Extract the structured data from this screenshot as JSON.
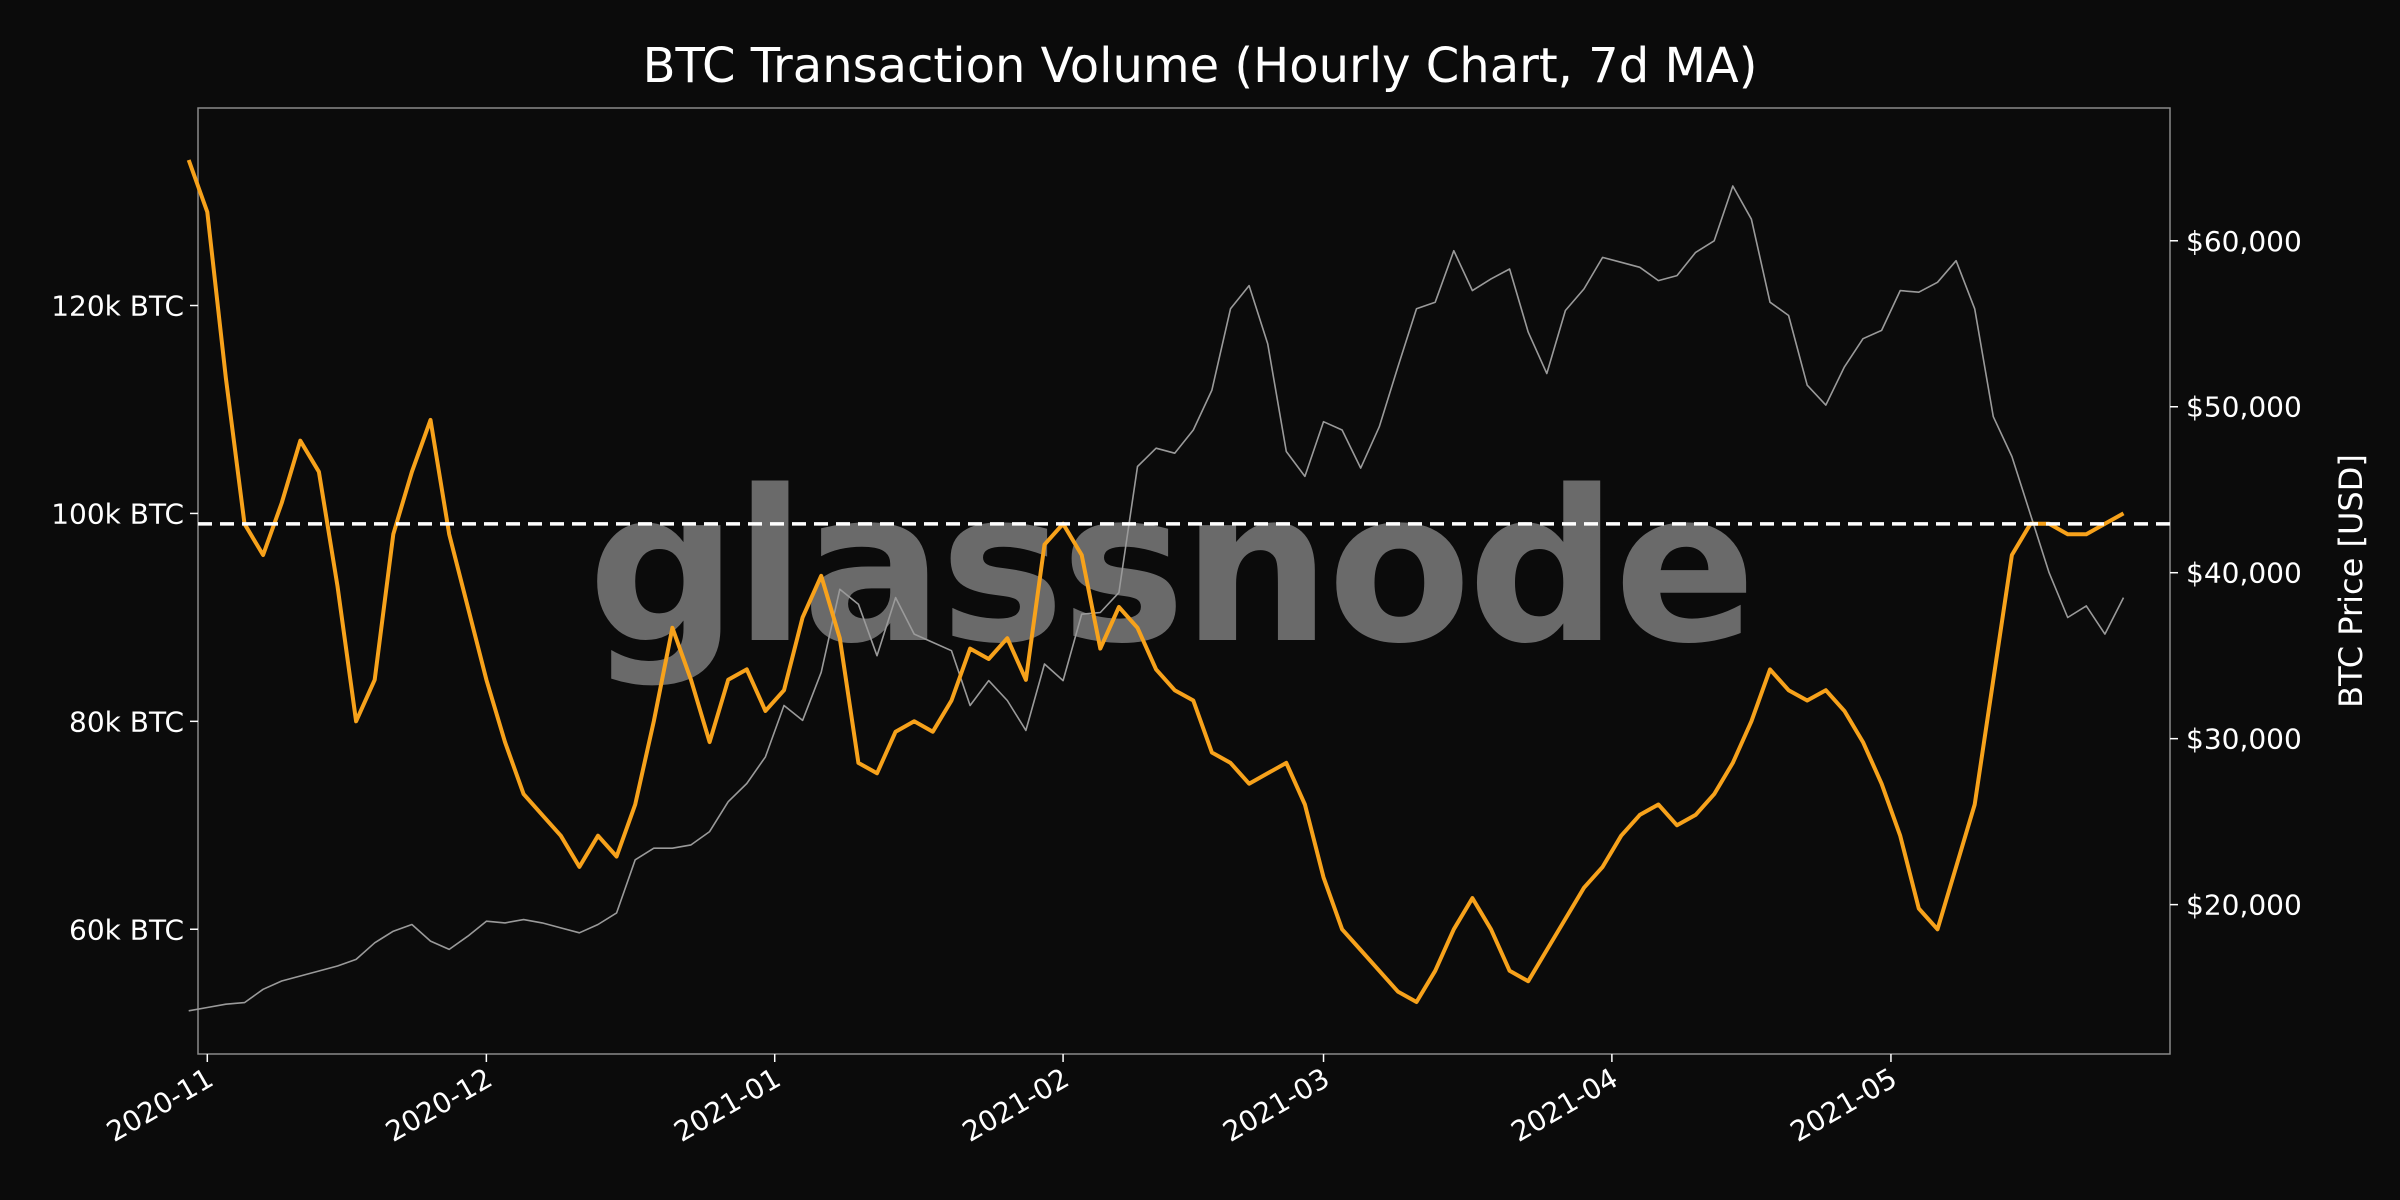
{
  "chart_data": {
    "type": "line",
    "title": "BTC Transaction Volume (Hourly Chart, 7d MA)",
    "watermark": "glassnode",
    "x": [
      "2020-10-30",
      "2020-11-01",
      "2020-11-03",
      "2020-11-05",
      "2020-11-07",
      "2020-11-09",
      "2020-11-11",
      "2020-11-13",
      "2020-11-15",
      "2020-11-17",
      "2020-11-19",
      "2020-11-21",
      "2020-11-23",
      "2020-11-25",
      "2020-11-27",
      "2020-11-29",
      "2020-12-01",
      "2020-12-03",
      "2020-12-05",
      "2020-12-07",
      "2020-12-09",
      "2020-12-11",
      "2020-12-13",
      "2020-12-15",
      "2020-12-17",
      "2020-12-19",
      "2020-12-21",
      "2020-12-23",
      "2020-12-25",
      "2020-12-27",
      "2020-12-29",
      "2020-12-31",
      "2021-01-02",
      "2021-01-04",
      "2021-01-06",
      "2021-01-08",
      "2021-01-10",
      "2021-01-12",
      "2021-01-14",
      "2021-01-16",
      "2021-01-18",
      "2021-01-20",
      "2021-01-22",
      "2021-01-24",
      "2021-01-26",
      "2021-01-28",
      "2021-01-30",
      "2021-02-01",
      "2021-02-03",
      "2021-02-05",
      "2021-02-07",
      "2021-02-09",
      "2021-02-11",
      "2021-02-13",
      "2021-02-15",
      "2021-02-17",
      "2021-02-19",
      "2021-02-21",
      "2021-02-23",
      "2021-02-25",
      "2021-02-27",
      "2021-03-01",
      "2021-03-03",
      "2021-03-05",
      "2021-03-07",
      "2021-03-09",
      "2021-03-11",
      "2021-03-13",
      "2021-03-15",
      "2021-03-17",
      "2021-03-19",
      "2021-03-21",
      "2021-03-23",
      "2021-03-25",
      "2021-03-27",
      "2021-03-29",
      "2021-03-31",
      "2021-04-02",
      "2021-04-04",
      "2021-04-06",
      "2021-04-08",
      "2021-04-10",
      "2021-04-12",
      "2021-04-14",
      "2021-04-16",
      "2021-04-18",
      "2021-04-20",
      "2021-04-22",
      "2021-04-24",
      "2021-04-26",
      "2021-04-28",
      "2021-04-30",
      "2021-05-02",
      "2021-05-04",
      "2021-05-06",
      "2021-05-08",
      "2021-05-10",
      "2021-05-12",
      "2021-05-14",
      "2021-05-16",
      "2021-05-18",
      "2021-05-20",
      "2021-05-22",
      "2021-05-24",
      "2021-05-26"
    ],
    "series": [
      {
        "axis": "left",
        "color": "#f7a21b",
        "values": [
          134,
          129,
          113,
          99,
          96,
          101,
          107,
          104,
          93,
          80,
          84,
          98,
          104,
          109,
          98,
          91,
          84,
          78,
          73,
          71,
          69,
          66,
          69,
          67,
          72,
          80,
          89,
          84,
          78,
          84,
          85,
          81,
          83,
          90,
          94,
          88,
          76,
          75,
          79,
          80,
          79,
          82,
          87,
          86,
          88,
          84,
          97,
          99,
          96,
          87,
          91,
          89,
          85,
          83,
          82,
          77,
          76,
          74,
          75,
          76,
          72,
          65,
          60,
          58,
          56,
          54,
          53,
          56,
          60,
          63,
          60,
          56,
          55,
          58,
          61,
          64,
          66,
          69,
          71,
          72,
          70,
          71,
          73,
          76,
          80,
          85,
          83,
          82,
          83,
          81,
          78,
          74,
          69,
          62,
          60,
          66,
          72,
          84,
          96,
          99,
          99,
          98,
          98,
          99,
          100
        ]
      },
      {
        "axis": "right",
        "color": "#9a9a9a",
        "values": [
          13600,
          13800,
          14000,
          14100,
          14900,
          15400,
          15700,
          16000,
          16300,
          16700,
          17700,
          18400,
          18800,
          17800,
          17300,
          18100,
          19000,
          18900,
          19100,
          18900,
          18600,
          18300,
          18800,
          19500,
          22700,
          23400,
          23400,
          23600,
          24400,
          26200,
          27300,
          28900,
          32000,
          31100,
          34000,
          39000,
          38100,
          35000,
          38500,
          36300,
          35800,
          35300,
          32000,
          33500,
          32300,
          30500,
          34500,
          33500,
          37500,
          37600,
          38800,
          46400,
          47500,
          47200,
          48600,
          51000,
          55900,
          57300,
          53800,
          47300,
          45800,
          49100,
          48600,
          46300,
          48800,
          52400,
          55900,
          56300,
          59400,
          57000,
          57700,
          58300,
          54500,
          52000,
          55800,
          57100,
          59000,
          58700,
          58400,
          57600,
          57900,
          59300,
          60000,
          63300,
          61300,
          56300,
          55500,
          51300,
          50100,
          52400,
          54100,
          54600,
          57000,
          56900,
          57500,
          58800,
          55900,
          49400,
          47000,
          43500,
          40000,
          37300,
          38000,
          36300,
          38500
        ]
      }
    ],
    "y_left": {
      "ticks": [
        60000,
        80000,
        100000,
        120000
      ],
      "tick_labels": [
        "60k BTC",
        "80k BTC",
        "100k BTC",
        "120k BTC"
      ],
      "ylim": [
        48000,
        139000
      ]
    },
    "y_right": {
      "ticks": [
        20000,
        30000,
        40000,
        50000,
        60000
      ],
      "tick_labels": [
        "$20,000",
        "$30,000",
        "$40,000",
        "$50,000",
        "$60,000"
      ],
      "ylim": [
        11000,
        68000
      ],
      "ylabel": "BTC Price [USD]"
    },
    "x_ticks": [
      {
        "date": "2020-11-01",
        "label": "2020-11"
      },
      {
        "date": "2020-12-01",
        "label": "2020-12"
      },
      {
        "date": "2021-01-01",
        "label": "2021-01"
      },
      {
        "date": "2021-02-01",
        "label": "2021-02"
      },
      {
        "date": "2021-03-01",
        "label": "2021-03"
      },
      {
        "date": "2021-04-01",
        "label": "2021-04"
      },
      {
        "date": "2021-05-01",
        "label": "2021-05"
      }
    ],
    "xlim": [
      "2020-10-31",
      "2021-05-31"
    ],
    "reference_line": {
      "axis": "left",
      "value": 99000,
      "style": "dashed",
      "color": "#ffffff"
    },
    "grid": false,
    "legend": "none"
  }
}
